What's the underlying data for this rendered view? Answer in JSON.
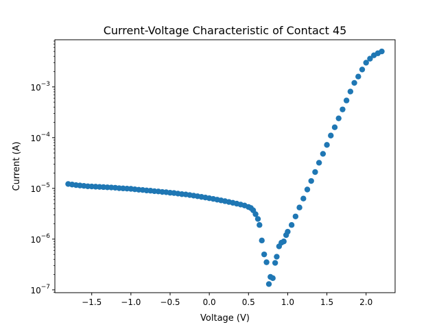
{
  "chart_data": {
    "type": "scatter",
    "title": "Current-Voltage Characteristic of Contact 45",
    "xlabel": "Voltage (V)",
    "ylabel": "Current (A)",
    "xlim": [
      -1.97,
      2.37
    ],
    "ylim": [
      8.8e-08,
      0.0085
    ],
    "yscale": "log",
    "grid": false,
    "marker_color": "#1f77b4",
    "x_ticks": [
      {
        "value": -1.5,
        "label": "−1.5"
      },
      {
        "value": -1.0,
        "label": "−1.0"
      },
      {
        "value": -0.5,
        "label": "−0.5"
      },
      {
        "value": 0.0,
        "label": "0.0"
      },
      {
        "value": 0.5,
        "label": "0.5"
      },
      {
        "value": 1.0,
        "label": "1.0"
      },
      {
        "value": 1.5,
        "label": "1.5"
      },
      {
        "value": 2.0,
        "label": "2.0"
      }
    ],
    "y_ticks": [
      {
        "value": 1e-07,
        "base": "10",
        "exp": "−7"
      },
      {
        "value": 1e-06,
        "base": "10",
        "exp": "−6"
      },
      {
        "value": 1e-05,
        "base": "10",
        "exp": "−5"
      },
      {
        "value": 0.0001,
        "base": "10",
        "exp": "−4"
      },
      {
        "value": 0.001,
        "base": "10",
        "exp": "−3"
      }
    ],
    "series": [
      {
        "x": [
          -1.8,
          -1.75,
          -1.7,
          -1.65,
          -1.6,
          -1.55,
          -1.5,
          -1.45,
          -1.4,
          -1.35,
          -1.3,
          -1.25,
          -1.2,
          -1.15,
          -1.1,
          -1.05,
          -1.0,
          -0.95,
          -0.9,
          -0.85,
          -0.8,
          -0.75,
          -0.7,
          -0.65,
          -0.6,
          -0.55,
          -0.5,
          -0.45,
          -0.4,
          -0.35,
          -0.3,
          -0.25,
          -0.2,
          -0.15,
          -0.1,
          -0.05,
          0.0,
          0.05,
          0.1,
          0.15,
          0.2,
          0.25,
          0.3,
          0.35,
          0.4,
          0.45,
          0.5,
          0.53,
          0.56,
          0.59,
          0.62,
          0.64,
          0.67,
          0.7,
          0.73,
          0.76,
          0.78,
          0.81,
          0.84,
          0.86,
          0.89,
          0.92,
          0.95,
          0.98,
          1.0,
          1.05,
          1.1,
          1.15,
          1.2,
          1.25,
          1.3,
          1.35,
          1.4,
          1.45,
          1.5,
          1.55,
          1.6,
          1.65,
          1.7,
          1.75,
          1.8,
          1.85,
          1.9,
          1.95,
          2.0,
          2.05,
          2.1,
          2.15,
          2.2
        ],
        "y": [
          1.22e-05,
          1.19e-05,
          1.16e-05,
          1.14e-05,
          1.12e-05,
          1.1e-05,
          1.09e-05,
          1.08e-05,
          1.07e-05,
          1.06e-05,
          1.05e-05,
          1.04e-05,
          1.03e-05,
          1.01e-05,
          1e-05,
          9.9e-06,
          9.8e-06,
          9.6e-06,
          9.4e-06,
          9.3e-06,
          9.1e-06,
          9e-06,
          8.8e-06,
          8.7e-06,
          8.5e-06,
          8.4e-06,
          8.2e-06,
          8.1e-06,
          7.9e-06,
          7.7e-06,
          7.6e-06,
          7.4e-06,
          7.2e-06,
          7e-06,
          6.8e-06,
          6.6e-06,
          6.4e-06,
          6.2e-06,
          6e-06,
          5.8e-06,
          5.6e-06,
          5.4e-06,
          5.2e-06,
          5e-06,
          4.8e-06,
          4.6e-06,
          4.3e-06,
          4.1e-06,
          3.7e-06,
          3.1e-06,
          2.5e-06,
          1.9e-06,
          9.4e-07,
          5e-07,
          3.5e-07,
          1.3e-07,
          1.8e-07,
          1.7e-07,
          3.4e-07,
          4.5e-07,
          7.2e-07,
          8.5e-07,
          9e-07,
          1.2e-06,
          1.4e-06,
          1.9e-06,
          2.8e-06,
          4.2e-06,
          6.3e-06,
          9.5e-06,
          1.4e-05,
          2.1e-05,
          3.2e-05,
          4.8e-05,
          7.2e-05,
          0.00011,
          0.00016,
          0.00024,
          0.00036,
          0.00054,
          0.00081,
          0.0012,
          0.0016,
          0.0022,
          0.003,
          0.0036,
          0.0042,
          0.0046,
          0.005
        ]
      }
    ]
  }
}
